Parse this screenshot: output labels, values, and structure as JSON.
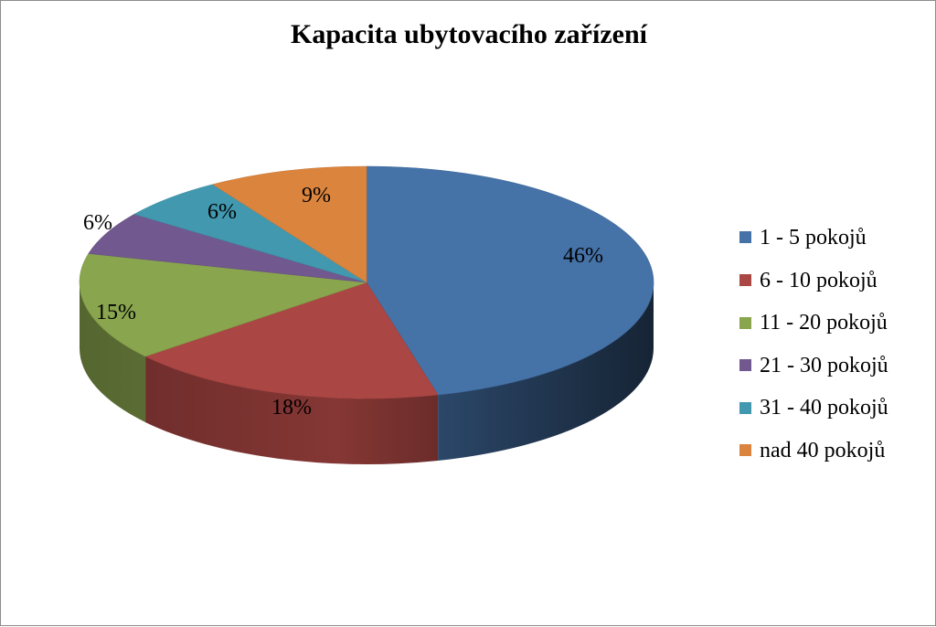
{
  "chart_data": {
    "type": "pie",
    "title": "Kapacita ubytovacího zařízení",
    "categories": [
      "1 - 5 pokojů",
      "6 - 10 pokojů",
      "11 - 20 pokojů",
      "21 - 30 pokojů",
      "31 - 40 pokojů",
      "nad 40 pokojů"
    ],
    "values": [
      46,
      18,
      15,
      6,
      6,
      9
    ],
    "data_labels": [
      "46%",
      "18%",
      "15%",
      "6%",
      "6%",
      "9%"
    ],
    "colors": [
      "#4572A7",
      "#AA4643",
      "#89A54E",
      "#71588F",
      "#4198AF",
      "#DB843D"
    ],
    "legend_position": "right",
    "style": "3d"
  }
}
